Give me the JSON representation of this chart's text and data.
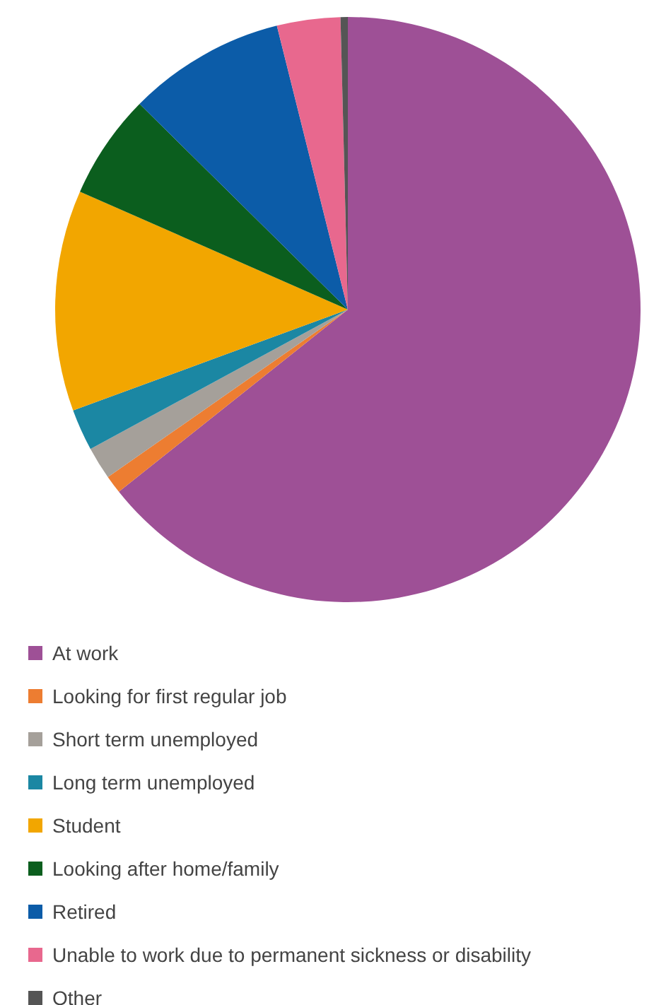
{
  "chart_data": {
    "type": "pie",
    "categories": [
      "At work",
      "Looking for first regular job",
      "Short term unemployed",
      "Long term unemployed",
      "Student",
      "Looking after home/family",
      "Retired",
      "Unable to work due to permanent sickness or disability",
      "Other"
    ],
    "values": [
      64.3,
      1,
      1.8,
      2.3,
      12.2,
      5.8,
      8.7,
      3.5,
      0.4
    ],
    "colors": [
      "#9e5096",
      "#ed7d31",
      "#a5a09a",
      "#1b87a3",
      "#f2a600",
      "#0b5e1e",
      "#0c5ca8",
      "#e8688e",
      "#555555"
    ],
    "legend": "bottom"
  }
}
